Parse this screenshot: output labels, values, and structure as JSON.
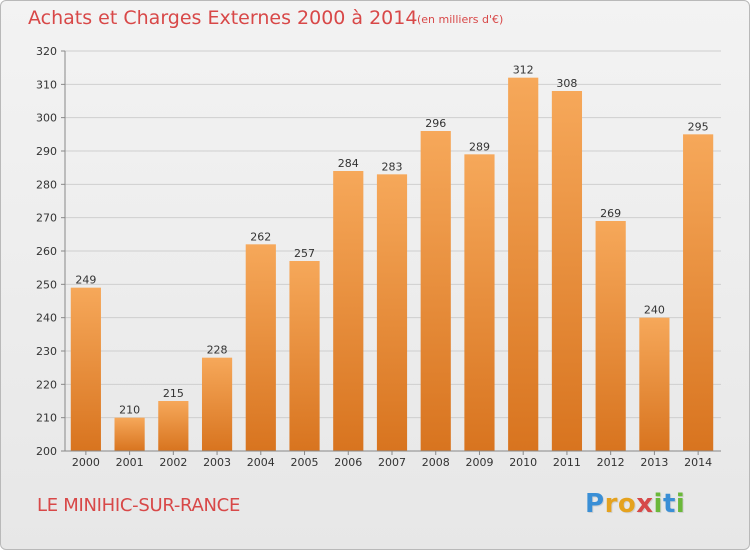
{
  "header": {
    "title": "Achats et Charges Externes 2000 à 2014",
    "subtitle": "(en milliers d'€)"
  },
  "footer": {
    "city": "LE MINIHIC-SUR-RANCE",
    "brand": "Proxiti",
    "brand_letters": [
      {
        "ch": "P",
        "color": "#3a8fd6"
      },
      {
        "ch": "r",
        "color": "#e5a21e"
      },
      {
        "ch": "o",
        "color": "#e5a21e"
      },
      {
        "ch": "x",
        "color": "#d64848"
      },
      {
        "ch": "i",
        "color": "#6bb83a"
      },
      {
        "ch": "t",
        "color": "#3a8fd6"
      },
      {
        "ch": "i",
        "color": "#6bb83a"
      }
    ]
  },
  "chart_data": {
    "type": "bar",
    "title": "Achats et Charges Externes 2000 à 2014",
    "subtitle": "(en milliers d'€)",
    "categories": [
      "2000",
      "2001",
      "2002",
      "2003",
      "2004",
      "2005",
      "2006",
      "2007",
      "2008",
      "2009",
      "2010",
      "2011",
      "2012",
      "2013",
      "2014"
    ],
    "values": [
      249,
      210,
      215,
      228,
      262,
      257,
      284,
      283,
      296,
      289,
      312,
      308,
      269,
      240,
      295
    ],
    "ylim": [
      200,
      320
    ],
    "yticks": [
      200,
      210,
      220,
      230,
      240,
      250,
      260,
      270,
      280,
      290,
      300,
      310,
      320
    ],
    "grid": true,
    "bar_color_top": "#f6a85a",
    "bar_color_bottom": "#d8741f",
    "xlabel": "",
    "ylabel": ""
  }
}
